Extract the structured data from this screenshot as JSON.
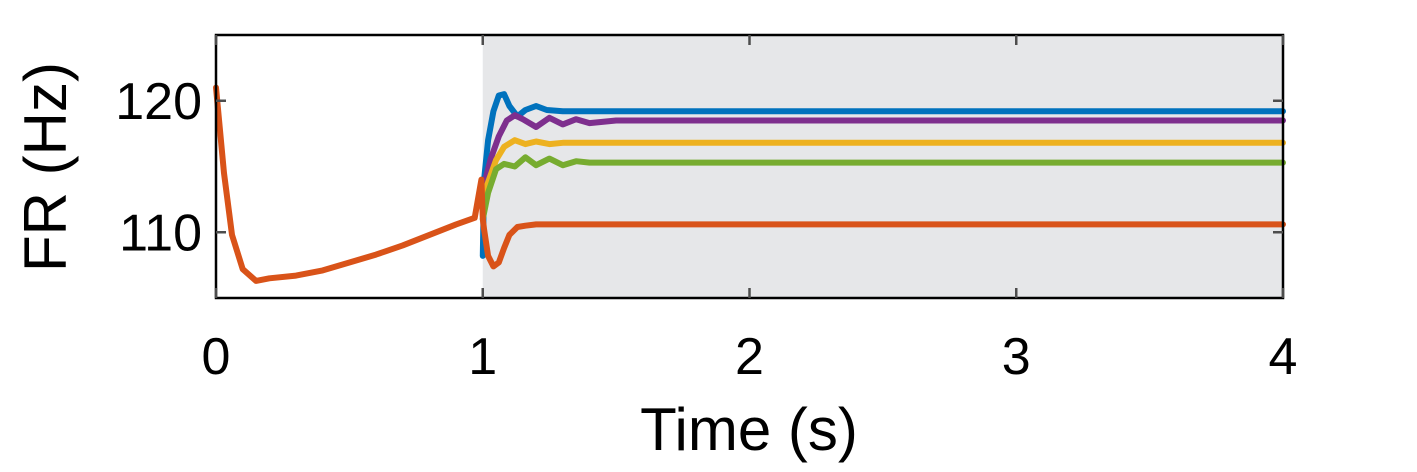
{
  "chart_data": {
    "type": "line",
    "title": "",
    "xlabel": "Time (s)",
    "ylabel": "FR (Hz)",
    "xlim": [
      0,
      4
    ],
    "ylim": [
      105,
      125
    ],
    "xticks": [
      0,
      1,
      2,
      3,
      4
    ],
    "yticks": [
      110,
      120
    ],
    "xtick_labels": [
      "0",
      "1",
      "2",
      "3",
      "4"
    ],
    "ytick_labels": [
      "110",
      "120"
    ],
    "grid": false,
    "shaded_region": {
      "x": [
        1,
        4
      ],
      "color": "#e6e7e9"
    },
    "series": [
      {
        "color": "#0072bd",
        "x": [
          1.0,
          1.005,
          1.02,
          1.04,
          1.06,
          1.08,
          1.1,
          1.13,
          1.16,
          1.2,
          1.24,
          1.3,
          1.4,
          1.6,
          2.0,
          3.0,
          4.0
        ],
        "y": [
          108.2,
          114.0,
          117.0,
          119.2,
          120.4,
          120.5,
          119.6,
          118.8,
          119.3,
          119.6,
          119.3,
          119.2,
          119.2,
          119.2,
          119.2,
          119.2,
          119.2
        ]
      },
      {
        "color": "#7e2f8e",
        "x": [
          1.0,
          1.01,
          1.03,
          1.06,
          1.09,
          1.12,
          1.15,
          1.2,
          1.25,
          1.3,
          1.35,
          1.4,
          1.5,
          1.6,
          2.0,
          3.0,
          4.0
        ],
        "y": [
          113.0,
          114.0,
          115.6,
          117.3,
          118.5,
          118.9,
          118.6,
          118.0,
          118.7,
          118.2,
          118.6,
          118.3,
          118.5,
          118.5,
          118.5,
          118.5,
          118.5
        ]
      },
      {
        "color": "#edb120",
        "x": [
          1.0,
          1.02,
          1.05,
          1.08,
          1.12,
          1.16,
          1.2,
          1.25,
          1.3,
          1.4,
          1.5,
          2.0,
          3.0,
          4.0
        ],
        "y": [
          112.5,
          113.8,
          115.5,
          116.5,
          117.0,
          116.7,
          116.9,
          116.7,
          116.8,
          116.8,
          116.8,
          116.8,
          116.8,
          116.8
        ]
      },
      {
        "color": "#77ac30",
        "x": [
          1.0,
          1.02,
          1.05,
          1.08,
          1.12,
          1.16,
          1.2,
          1.25,
          1.3,
          1.35,
          1.4,
          1.5,
          1.6,
          2.0,
          3.0,
          4.0
        ],
        "y": [
          111.0,
          113.0,
          114.8,
          115.2,
          115.0,
          115.7,
          115.1,
          115.6,
          115.1,
          115.4,
          115.3,
          115.3,
          115.3,
          115.3,
          115.3,
          115.3
        ]
      },
      {
        "color": "#d95319",
        "x": [
          0.0,
          0.03,
          0.06,
          0.1,
          0.15,
          0.2,
          0.3,
          0.4,
          0.5,
          0.6,
          0.7,
          0.8,
          0.9,
          0.97,
          0.995,
          1.0,
          1.005,
          1.02,
          1.04,
          1.06,
          1.08,
          1.1,
          1.13,
          1.16,
          1.2,
          1.25,
          1.3,
          1.4,
          1.6,
          2.0,
          3.0,
          4.0
        ],
        "y": [
          121.0,
          114.5,
          109.8,
          107.2,
          106.3,
          106.5,
          106.7,
          107.1,
          107.7,
          108.3,
          109.0,
          109.8,
          110.6,
          111.1,
          114.0,
          111.0,
          110.2,
          108.2,
          107.4,
          107.7,
          108.8,
          109.8,
          110.4,
          110.5,
          110.6,
          110.6,
          110.6,
          110.6,
          110.6,
          110.6,
          110.6,
          110.6
        ]
      }
    ]
  }
}
